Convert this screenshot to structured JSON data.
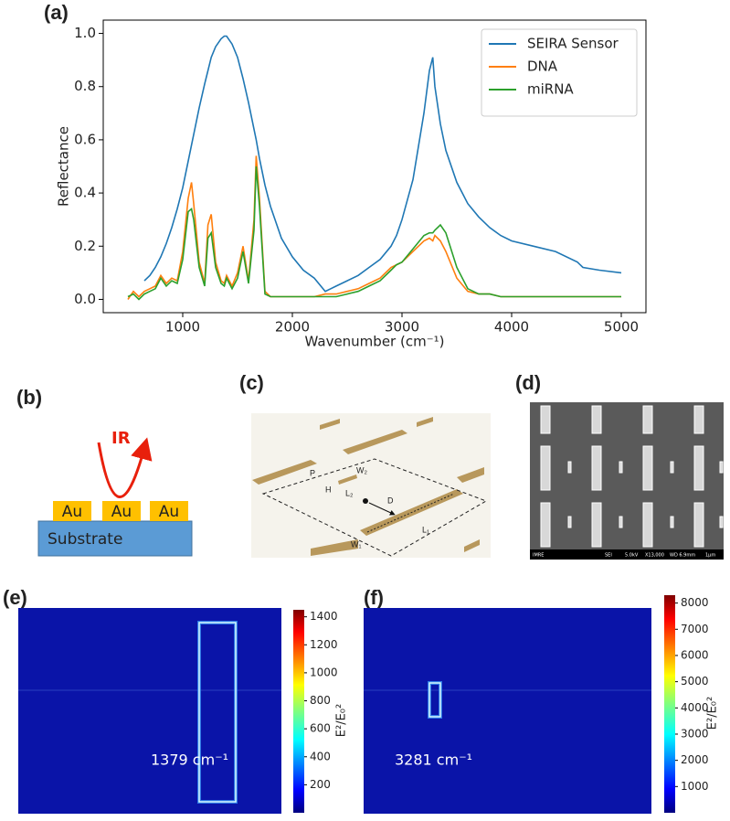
{
  "chart_data": [
    {
      "type": "line",
      "panel_label": "(a)",
      "xlabel": "Wavenumber (cm⁻¹)",
      "ylabel": "Reflectance",
      "x": [
        500,
        550,
        600,
        650,
        700,
        750,
        800,
        850,
        900,
        950,
        1000,
        1050,
        1080,
        1100,
        1150,
        1200,
        1230,
        1260,
        1300,
        1350,
        1379,
        1400,
        1450,
        1500,
        1550,
        1600,
        1650,
        1670,
        1700,
        1750,
        1800,
        1900,
        2000,
        2100,
        2200,
        2300,
        2350,
        2400,
        2500,
        2600,
        2700,
        2800,
        2900,
        2950,
        3000,
        3100,
        3200,
        3250,
        3281,
        3300,
        3350,
        3400,
        3500,
        3600,
        3700,
        3800,
        3900,
        4000,
        4200,
        4400,
        4600,
        4650,
        4800,
        5000
      ],
      "series": [
        {
          "name": "SEIRA Sensor",
          "color": "#1f77b4",
          "values": [
            null,
            null,
            null,
            0.07,
            0.09,
            0.12,
            0.16,
            0.21,
            0.27,
            0.34,
            0.42,
            0.52,
            0.58,
            0.62,
            0.72,
            0.81,
            0.86,
            0.91,
            0.95,
            0.98,
            0.99,
            0.99,
            0.96,
            0.91,
            0.83,
            0.74,
            0.64,
            0.6,
            0.53,
            0.43,
            0.35,
            0.23,
            0.16,
            0.11,
            0.08,
            0.03,
            0.04,
            0.05,
            0.07,
            0.09,
            0.12,
            0.15,
            0.2,
            0.24,
            0.3,
            0.45,
            0.7,
            0.86,
            0.91,
            0.8,
            0.66,
            0.56,
            0.44,
            0.36,
            0.31,
            0.27,
            0.24,
            0.22,
            0.2,
            0.18,
            0.14,
            0.12,
            0.11,
            0.1
          ]
        },
        {
          "name": "DNA",
          "color": "#ff7f0e",
          "values": [
            0.0,
            0.03,
            0.01,
            0.03,
            0.04,
            0.05,
            0.09,
            0.06,
            0.08,
            0.07,
            0.18,
            0.38,
            0.44,
            0.36,
            0.14,
            0.06,
            0.28,
            0.32,
            0.14,
            0.07,
            0.06,
            0.09,
            0.05,
            0.1,
            0.2,
            0.07,
            0.3,
            0.54,
            0.38,
            0.03,
            0.01,
            0.01,
            0.01,
            0.01,
            0.01,
            0.02,
            0.02,
            0.02,
            0.03,
            0.04,
            0.06,
            0.08,
            0.12,
            0.13,
            0.14,
            0.18,
            0.22,
            0.23,
            0.22,
            0.24,
            0.22,
            0.18,
            0.08,
            0.03,
            0.02,
            0.02,
            0.01,
            0.01,
            0.01,
            0.01,
            0.01,
            0.01,
            0.01,
            0.01
          ]
        },
        {
          "name": "miRNA",
          "color": "#2ca02c",
          "values": [
            0.01,
            0.02,
            0.0,
            0.02,
            0.03,
            0.04,
            0.08,
            0.05,
            0.07,
            0.06,
            0.15,
            0.33,
            0.34,
            0.3,
            0.12,
            0.05,
            0.23,
            0.25,
            0.12,
            0.06,
            0.05,
            0.08,
            0.04,
            0.08,
            0.18,
            0.06,
            0.26,
            0.5,
            0.35,
            0.02,
            0.01,
            0.01,
            0.01,
            0.01,
            0.01,
            0.01,
            0.01,
            0.01,
            0.02,
            0.03,
            0.05,
            0.07,
            0.11,
            0.13,
            0.14,
            0.19,
            0.24,
            0.25,
            0.25,
            0.26,
            0.28,
            0.25,
            0.12,
            0.04,
            0.02,
            0.02,
            0.01,
            0.01,
            0.01,
            0.01,
            0.01,
            0.01,
            0.01,
            0.01
          ]
        }
      ],
      "xlim": [
        275,
        5225
      ],
      "ylim": [
        -0.05,
        1.05
      ],
      "xticks": [
        1000,
        2000,
        3000,
        4000,
        5000
      ],
      "yticks": [
        {
          "value": 0,
          "label": "0.0"
        },
        0.2,
        0.4,
        0.6,
        0.8,
        {
          "value": 1,
          "label": "1.0"
        }
      ],
      "legend": "upper right"
    },
    {
      "type": "heatmap",
      "panel_label": "(e)",
      "annotation": "1379 cm⁻¹",
      "colorbar_label": "E²/E₀²",
      "clim": [
        0,
        1450
      ],
      "cticks": [
        200,
        400,
        600,
        800,
        1000,
        1200,
        1400
      ]
    },
    {
      "type": "heatmap",
      "panel_label": "(f)",
      "annotation": "3281 cm⁻¹",
      "colorbar_label": "E²/E₀²",
      "clim": [
        0,
        8300
      ],
      "cticks": [
        1000,
        2000,
        3000,
        4000,
        5000,
        6000,
        7000,
        8000
      ]
    }
  ],
  "panels": {
    "b": {
      "label": "(b)",
      "beam": "IR",
      "metal": [
        "Au",
        "Au",
        "Au"
      ],
      "substrate": "Substrate"
    },
    "c": {
      "label": "(c)",
      "dimensions": [
        "P",
        "W₂",
        "H",
        "L₂",
        "D",
        "L₁",
        "W₁"
      ]
    },
    "d": {
      "label": "(d)",
      "footer": [
        "IMRE",
        "SEI",
        "5.0kV",
        "X13,000",
        "WD 6.9mm",
        "1μm"
      ]
    }
  }
}
